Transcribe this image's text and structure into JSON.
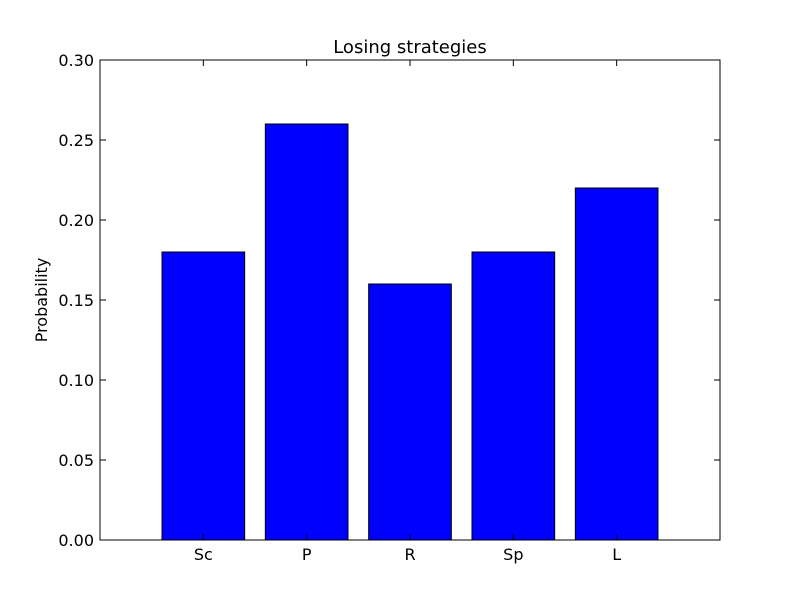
{
  "chart_data": {
    "type": "bar",
    "title": "Losing strategies",
    "xlabel": "",
    "ylabel": "Probability",
    "categories": [
      "Sc",
      "P",
      "R",
      "Sp",
      "L"
    ],
    "values": [
      0.18,
      0.26,
      0.16,
      0.18,
      0.22
    ],
    "ylim": [
      0,
      0.3
    ],
    "yticks": [
      "0.00",
      "0.05",
      "0.10",
      "0.15",
      "0.20",
      "0.25",
      "0.30"
    ],
    "bar_color": "#0000ff",
    "grid": false,
    "legend": "none"
  }
}
